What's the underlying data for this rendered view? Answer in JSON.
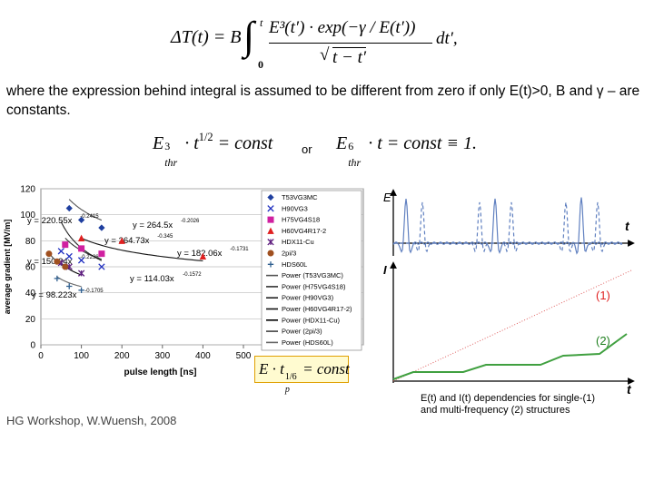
{
  "formula_main": {
    "lhs": "ΔT(t) = B ·",
    "upper": "t",
    "lower": "0",
    "numerator": "E³(t′) · exp(−γ / E(t′))",
    "denominator": "t − t′",
    "tail": "dt′,"
  },
  "text": "where the expression behind integral is assumed to be different from zero if only E(t)>0, B and γ – are constants.",
  "formula_thr": {
    "base": "E",
    "sup": "3",
    "sub": "thr",
    "mid": "· t",
    "exp": "1/2",
    "rhs": "= const"
  },
  "or": "or",
  "formula_thr6": {
    "base": "E",
    "sup": "6",
    "sub": "thr",
    "rhs": "· t = const ≡ 1."
  },
  "chart_data": {
    "type": "scatter",
    "x_label": "pulse length [ns]",
    "y_label": "average gradient [MV/m]",
    "xlim": [
      0,
      500
    ],
    "ylim": [
      0,
      120
    ],
    "xticks": [
      0,
      100,
      200,
      300,
      400,
      500
    ],
    "yticks": [
      0,
      20,
      40,
      60,
      80,
      100,
      120
    ],
    "grid": true,
    "series": [
      {
        "name": "T53VG3MC",
        "color": "#1f3f9f",
        "marker": "diamond",
        "x": [
          70,
          100,
          150
        ],
        "values": [
          105,
          96,
          90
        ]
      },
      {
        "name": "H90VG3",
        "color": "#2030c0",
        "marker": "x",
        "x": [
          50,
          70,
          100,
          150
        ],
        "values": [
          72,
          68,
          65,
          60
        ]
      },
      {
        "name": "H75VG4S18",
        "color": "#d020a0",
        "marker": "square",
        "x": [
          60,
          100,
          150
        ],
        "values": [
          77,
          74,
          70
        ]
      },
      {
        "name": "H60VG4R17-2",
        "color": "#e02020",
        "marker": "triangle",
        "x": [
          100,
          200,
          400
        ],
        "values": [
          82,
          80,
          68
        ]
      },
      {
        "name": "HDX11-Cu",
        "color": "#602080",
        "marker": "star",
        "x": [
          50,
          70,
          100
        ],
        "values": [
          63,
          60,
          55
        ]
      },
      {
        "name": "2pi/3",
        "color": "#a05020",
        "marker": "circle",
        "x": [
          20,
          40,
          60
        ],
        "values": [
          70,
          64,
          60
        ]
      },
      {
        "name": "HDS60L",
        "color": "#306090",
        "marker": "plus",
        "x": [
          40,
          70,
          100
        ],
        "values": [
          51,
          45,
          42
        ]
      }
    ],
    "trendlines": [
      {
        "name": "Power (T53VG3MC)",
        "color": "#555555",
        "a": 264.5,
        "b": -0.2026,
        "label": "y = 264.5x",
        "exponent_label": "-0.2026",
        "series": 0
      },
      {
        "name": "Power (H75VG4S18)",
        "color": "#333333",
        "a": 220.55,
        "b": -0.2415,
        "label": "y = 220.55x",
        "exponent_label": "-0.2415",
        "series": 2
      },
      {
        "name": "Power (H90VG3)",
        "color": "#222222",
        "a": 364.73,
        "b": -0.345,
        "label": "y = 364.73x",
        "exponent_label": "-0.345",
        "series": 1
      },
      {
        "name": "Power (H60VG4R17-2)",
        "color": "#111111",
        "a": 182.06,
        "b": -0.1731,
        "label": "y = 182.06x",
        "exponent_label": "-0.1731",
        "series": 3
      },
      {
        "name": "Power (HDX11-Cu)",
        "color": "#000000",
        "a": 150.24,
        "b": -0.2236,
        "label": "y = 150.24x",
        "exponent_label": "-0.2236",
        "series": 4
      },
      {
        "name": "Power (2pi/3)",
        "color": "#444444",
        "a": 114.03,
        "b": -0.1572,
        "label": "y = 114.03x",
        "exponent_label": "-0.1572",
        "series": 5
      },
      {
        "name": "Power (HDS60L)",
        "color": "#666666",
        "a": 98.223,
        "b": -0.1705,
        "label": "y = 98.223x",
        "exponent_label": "-0.1705",
        "series": 6
      }
    ]
  },
  "formula_box": {
    "base": "E · t",
    "exp": "1/6",
    "sub": "p",
    "rhs": "= const"
  },
  "diagram": {
    "e_label": "E",
    "i_label": "I",
    "t_label_top": "t",
    "t_label_bottom": "t",
    "curve_1": "(1)",
    "curve_2": "(2)",
    "caption": "E(t) and I(t) dependencies for single-(1) and multi-frequency (2) structures"
  },
  "footer": "HG Workshop, W.Wuensh, 2008"
}
